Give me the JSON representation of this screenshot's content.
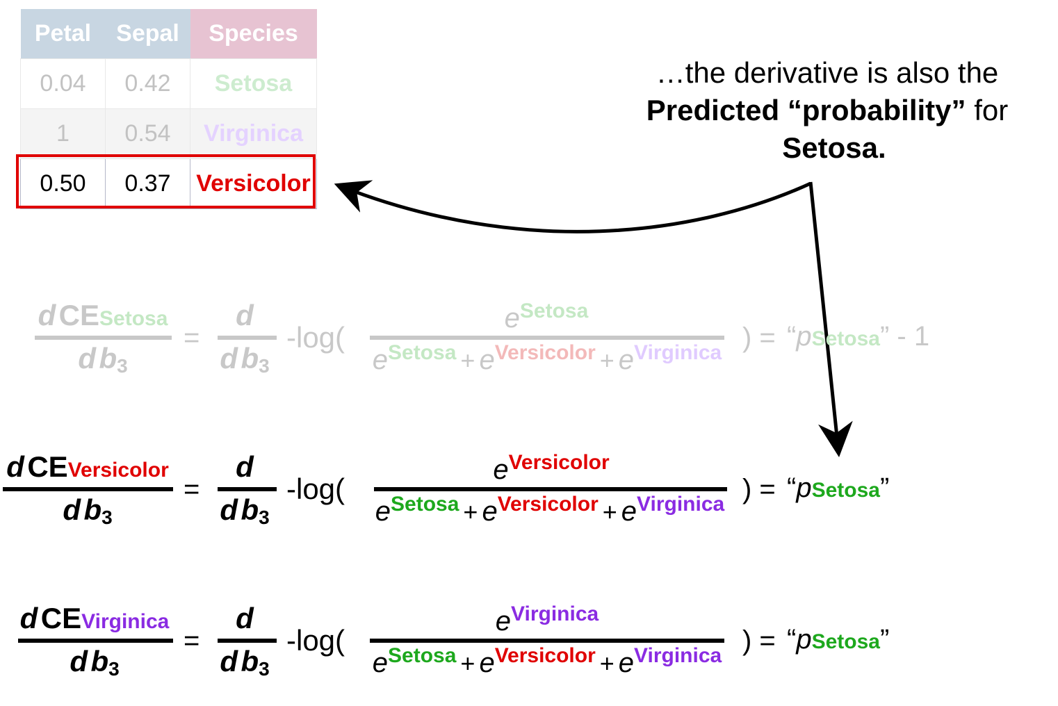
{
  "table": {
    "headers": [
      "Petal",
      "Sepal",
      "Species"
    ],
    "rows": [
      [
        "0.04",
        "0.42",
        "Setosa"
      ],
      [
        "1",
        "0.54",
        "Virginica"
      ],
      [
        "0.50",
        "0.37",
        "Versicolor"
      ]
    ],
    "highlighted_row": 3
  },
  "annotation": {
    "line1": "…the derivative is also the",
    "line2_bold": "Predicted “probability”",
    "line2_rest": " for",
    "line3_bold": "Setosa",
    "line3_end": "."
  },
  "math": {
    "d": "d",
    "ce": "CE",
    "b": "b",
    "b_sub": "3",
    "equals": "=",
    "neglog": "-log(",
    "close": ") =",
    "e": "e",
    "plus": "+",
    "quote_open": "“",
    "quote_close": "”",
    "p": "p",
    "minus_one": "- 1"
  },
  "classes": {
    "setosa": "Setosa",
    "versicolor": "Versicolor",
    "virginica": "Virginica"
  },
  "colors": {
    "setosa": "#1da81d",
    "versicolor": "#e00000",
    "virginica": "#8a2be2",
    "header_blue": "#c8d6e2",
    "header_pink": "#e7c3d2",
    "highlight": "#e00000"
  }
}
